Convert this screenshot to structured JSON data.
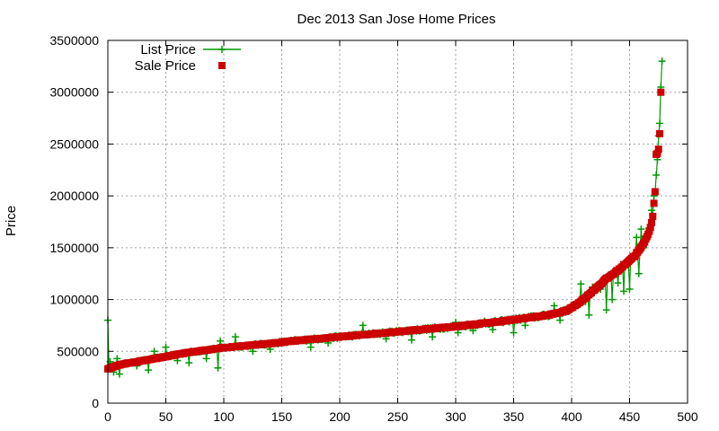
{
  "chart_data": {
    "type": "scatter",
    "title": "Dec 2013 San Jose Home Prices",
    "xlabel": "",
    "ylabel": "Price",
    "xlim": [
      0,
      500
    ],
    "ylim": [
      0,
      3500000
    ],
    "xticks": [
      0,
      50,
      100,
      150,
      200,
      250,
      300,
      350,
      400,
      450,
      500
    ],
    "yticks": [
      0,
      500000,
      1000000,
      1500000,
      2000000,
      2500000,
      3000000,
      3500000
    ],
    "grid": true,
    "legend_position": "top-left",
    "sale_curve": [
      [
        0,
        330000
      ],
      [
        5,
        350000
      ],
      [
        10,
        370000
      ],
      [
        20,
        390000
      ],
      [
        30,
        410000
      ],
      [
        40,
        430000
      ],
      [
        50,
        450000
      ],
      [
        60,
        470000
      ],
      [
        70,
        490000
      ],
      [
        80,
        505000
      ],
      [
        90,
        520000
      ],
      [
        100,
        535000
      ],
      [
        120,
        555000
      ],
      [
        140,
        575000
      ],
      [
        160,
        600000
      ],
      [
        180,
        620000
      ],
      [
        200,
        640000
      ],
      [
        220,
        660000
      ],
      [
        240,
        680000
      ],
      [
        260,
        700000
      ],
      [
        280,
        720000
      ],
      [
        300,
        740000
      ],
      [
        320,
        765000
      ],
      [
        340,
        790000
      ],
      [
        360,
        820000
      ],
      [
        380,
        850000
      ],
      [
        395,
        890000
      ],
      [
        400,
        920000
      ],
      [
        410,
        1000000
      ],
      [
        420,
        1100000
      ],
      [
        430,
        1200000
      ],
      [
        440,
        1280000
      ],
      [
        450,
        1380000
      ],
      [
        455,
        1430000
      ],
      [
        460,
        1500000
      ],
      [
        465,
        1600000
      ],
      [
        468,
        1700000
      ],
      [
        470,
        1800000
      ],
      [
        472,
        2040000
      ],
      [
        473,
        2400000
      ],
      [
        474,
        2450000
      ],
      [
        476,
        2600000
      ],
      [
        477,
        3000000
      ]
    ],
    "series": [
      {
        "name": "List Price",
        "style": "linespoints",
        "marker": "plus",
        "color": "#009900",
        "outliers": [
          [
            0,
            800000
          ],
          [
            2,
            400000
          ],
          [
            5,
            300000
          ],
          [
            8,
            430000
          ],
          [
            10,
            280000
          ],
          [
            15,
            390000
          ],
          [
            25,
            360000
          ],
          [
            35,
            320000
          ],
          [
            40,
            500000
          ],
          [
            50,
            540000
          ],
          [
            60,
            410000
          ],
          [
            70,
            390000
          ],
          [
            85,
            430000
          ],
          [
            95,
            340000
          ],
          [
            97,
            600000
          ],
          [
            110,
            640000
          ],
          [
            125,
            500000
          ],
          [
            140,
            520000
          ],
          [
            175,
            540000
          ],
          [
            190,
            580000
          ],
          [
            220,
            750000
          ],
          [
            240,
            620000
          ],
          [
            262,
            610000
          ],
          [
            280,
            640000
          ],
          [
            300,
            780000
          ],
          [
            302,
            680000
          ],
          [
            315,
            700000
          ],
          [
            325,
            790000
          ],
          [
            332,
            710000
          ],
          [
            350,
            680000
          ],
          [
            360,
            750000
          ],
          [
            385,
            940000
          ],
          [
            390,
            800000
          ],
          [
            408,
            1150000
          ],
          [
            412,
            980000
          ],
          [
            415,
            850000
          ],
          [
            418,
            1120000
          ],
          [
            425,
            1100000
          ],
          [
            430,
            900000
          ],
          [
            435,
            1000000
          ],
          [
            440,
            1160000
          ],
          [
            445,
            1080000
          ],
          [
            450,
            1100000
          ],
          [
            455,
            1420000
          ],
          [
            456,
            1600000
          ],
          [
            458,
            1250000
          ],
          [
            460,
            1680000
          ],
          [
            462,
            1500000
          ],
          [
            466,
            1630000
          ],
          [
            469,
            1860000
          ],
          [
            471,
            2000000
          ],
          [
            473,
            2200000
          ],
          [
            474,
            2350000
          ],
          [
            475,
            2580000
          ],
          [
            476,
            2700000
          ],
          [
            477,
            3050000
          ],
          [
            478,
            3300000
          ]
        ]
      },
      {
        "name": "Sale Price",
        "style": "points",
        "marker": "filled-square",
        "color": "#cc0000",
        "highlights": [
          [
            472,
            2040000
          ],
          [
            473,
            2400000
          ],
          [
            474,
            2410000
          ],
          [
            475,
            2450000
          ],
          [
            476,
            2600000
          ],
          [
            477,
            3000000
          ]
        ]
      }
    ]
  }
}
